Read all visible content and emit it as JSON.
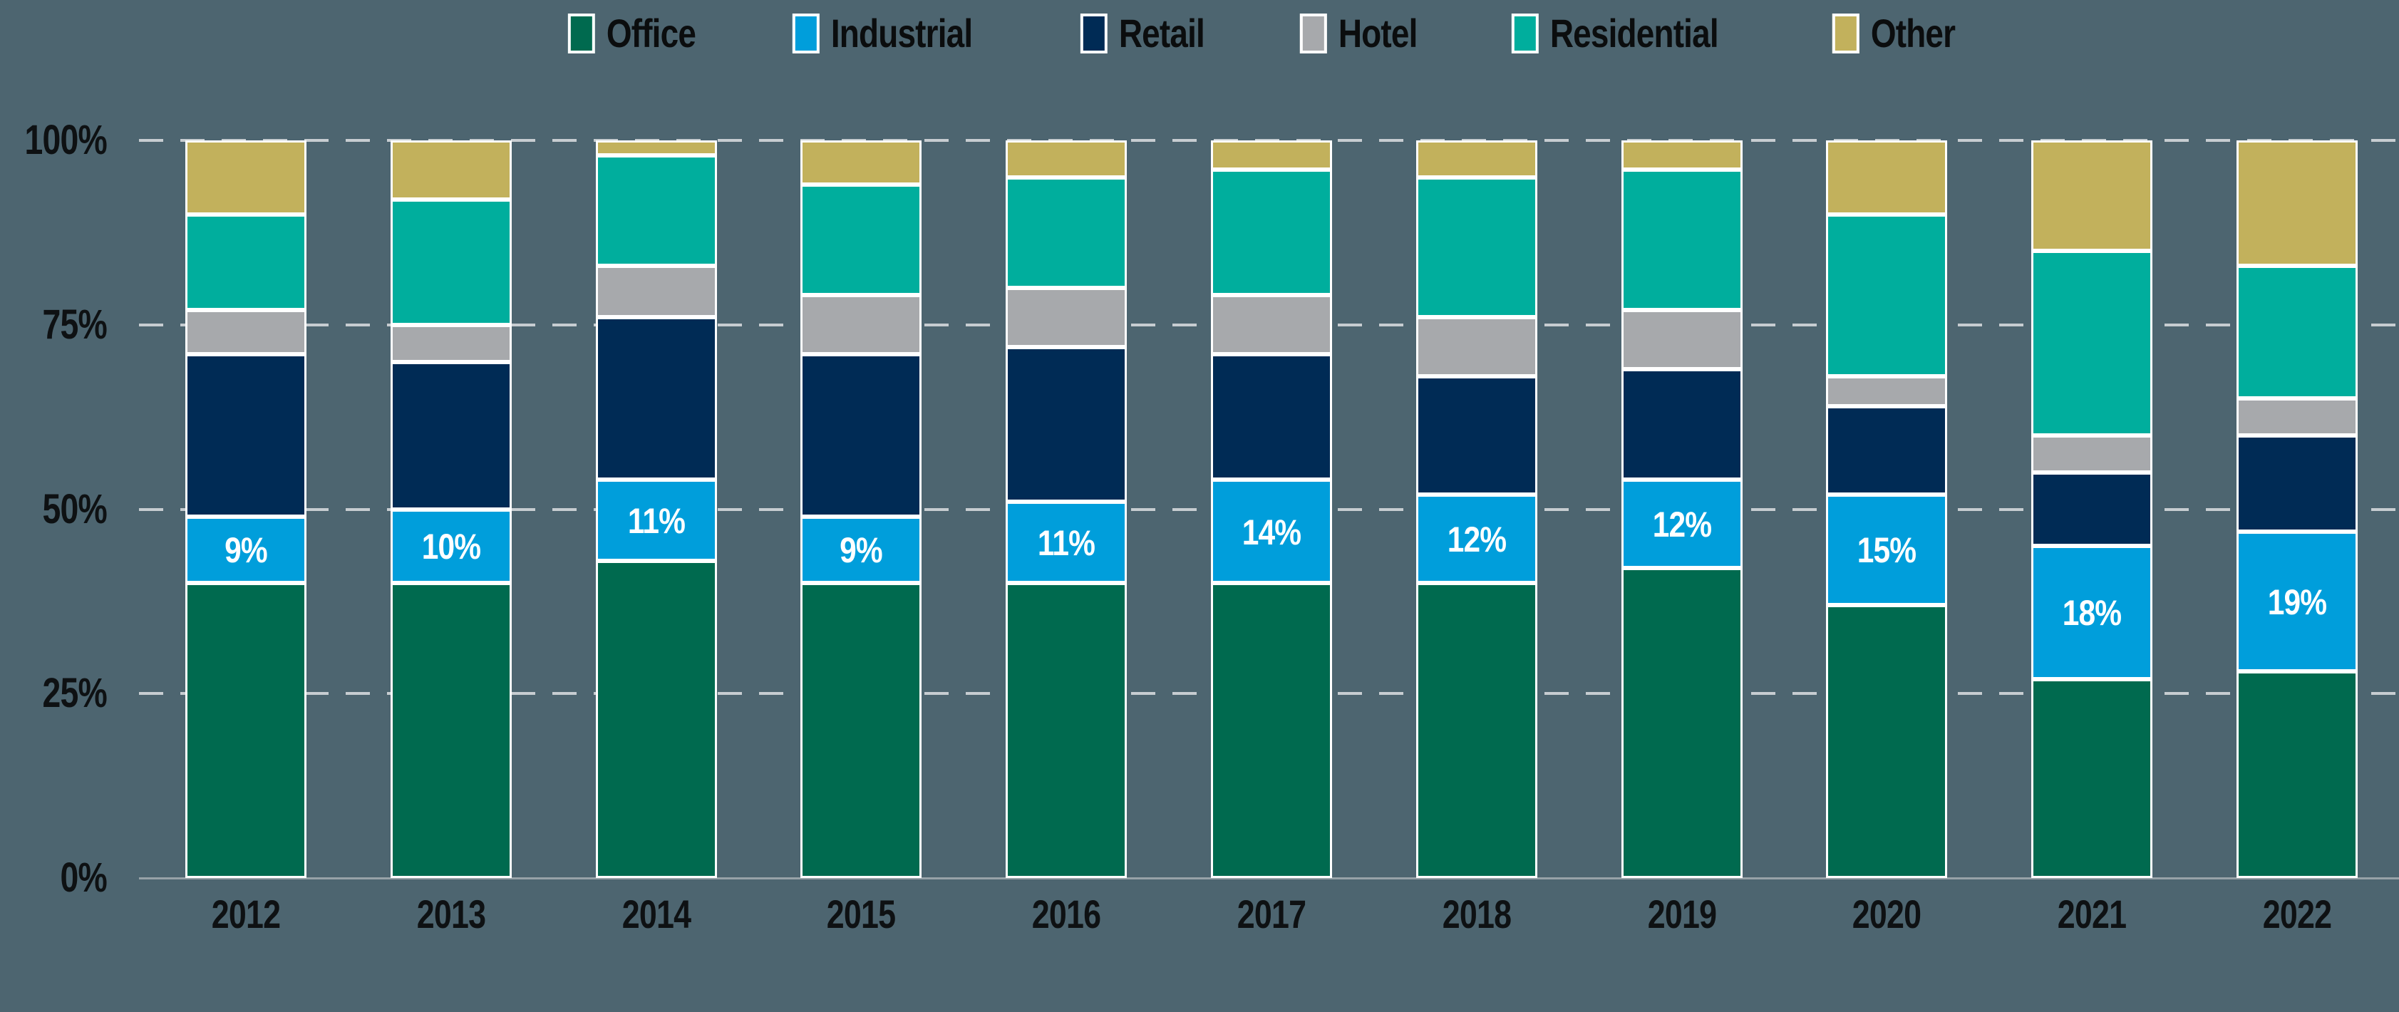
{
  "colors": {
    "background": "#4D6570",
    "grid_dashed": "#C7CDD1",
    "axis_baseline": "#97A2A8",
    "bar_border": "#FFFFFF",
    "bar_value_label": "#FFFFFF",
    "axis_text": "#0E1113",
    "legend_text": "#0B0D0E"
  },
  "layout_hints": {
    "legend_position": "top",
    "grid": "horizontal dashed at 25% steps",
    "stacked": true
  },
  "chart_data": {
    "type": "bar",
    "stacked": true,
    "unit": "%",
    "title": "",
    "xlabel": "",
    "ylabel": "",
    "ylim": [
      0,
      100
    ],
    "categories": [
      "2012",
      "2013",
      "2014",
      "2015",
      "2016",
      "2017",
      "2018",
      "2019",
      "2020",
      "2021",
      "2022"
    ],
    "series": [
      {
        "name": "Office",
        "color": "#006A4F",
        "values": [
          40,
          40,
          43,
          40,
          40,
          40,
          40,
          42,
          37,
          27,
          28
        ]
      },
      {
        "name": "Industrial",
        "color": "#009EDB",
        "values": [
          9,
          10,
          11,
          9,
          11,
          14,
          12,
          12,
          15,
          18,
          19
        ]
      },
      {
        "name": "Retail",
        "color": "#002B55",
        "values": [
          22,
          20,
          22,
          22,
          21,
          17,
          16,
          15,
          12,
          10,
          13
        ]
      },
      {
        "name": "Hotel",
        "color": "#A7A9AC",
        "values": [
          6,
          5,
          7,
          8,
          8,
          8,
          8,
          8,
          4,
          5,
          5
        ]
      },
      {
        "name": "Residential",
        "color": "#00AE9D",
        "values": [
          13,
          17,
          15,
          15,
          15,
          17,
          19,
          19,
          22,
          25,
          18
        ]
      },
      {
        "name": "Other",
        "color": "#C2B15C",
        "values": [
          10,
          8,
          2,
          6,
          5,
          4,
          5,
          4,
          10,
          15,
          17
        ]
      }
    ],
    "bar_value_labels": {
      "series": "Industrial",
      "labels": [
        "9%",
        "10%",
        "11%",
        "9%",
        "11%",
        "14%",
        "12%",
        "12%",
        "15%",
        "18%",
        "19%"
      ]
    },
    "y_axis": {
      "tick_labels": [
        "0%",
        "25%",
        "50%",
        "75%",
        "100%"
      ],
      "tick_values": [
        0,
        25,
        50,
        75,
        100
      ]
    },
    "legend": [
      "Office",
      "Industrial",
      "Retail",
      "Hotel",
      "Residential",
      "Other"
    ]
  }
}
